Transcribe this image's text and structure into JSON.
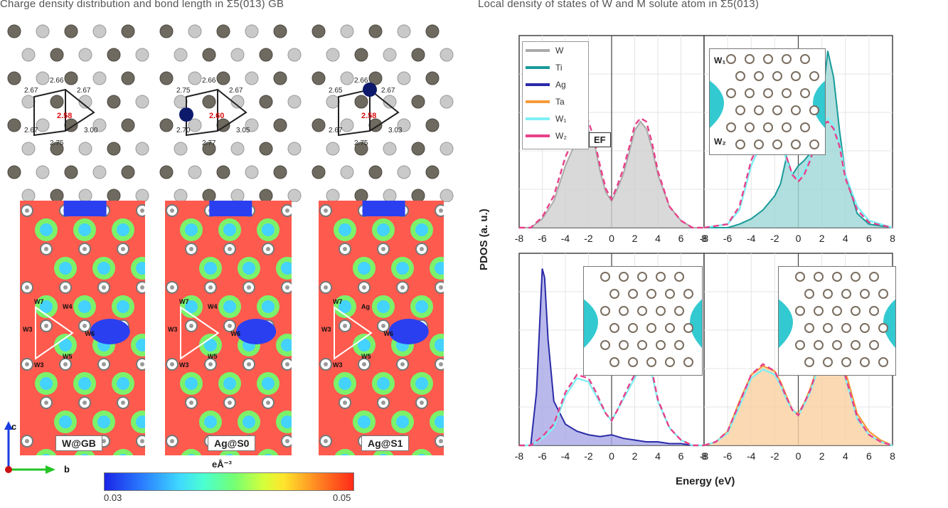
{
  "header": {
    "left_title": "Charge density distribution and bond length in Σ5(013) GB",
    "right_title": "Local density of states of W and M solute atom in Σ5(013)"
  },
  "left_panel": {
    "structures": [
      {
        "bonds": [
          "2.67",
          "2.66",
          "2.67",
          "3.00",
          "2.75",
          "2.67"
        ],
        "center_bond": "2.58"
      },
      {
        "bonds": [
          "2.75",
          "2.66",
          "2.67",
          "3.05",
          "2.77",
          "2.70"
        ],
        "center_bond": "2.60"
      },
      {
        "bonds": [
          "2.65",
          "2.66",
          "2.67",
          "3.03",
          "2.75",
          "2.67"
        ],
        "center_bond": "2.58"
      }
    ],
    "maps": [
      {
        "label": "W@GB",
        "atom_tags": [
          "W7",
          "W4",
          "W3",
          "W6",
          "W5",
          "W3"
        ]
      },
      {
        "label": "Ag@S0",
        "atom_tags": [
          "W7",
          "W4",
          "W3",
          "W6",
          "W5",
          "W3"
        ]
      },
      {
        "label": "Ag@S1",
        "atom_tags": [
          "W7",
          "Ag",
          "W3",
          "W6",
          "W5",
          "W3"
        ]
      }
    ],
    "axes": {
      "c": "c",
      "b": "b"
    },
    "colorbar": {
      "unit": "eÅ⁻³",
      "min": "0.03",
      "max": "0.05"
    }
  },
  "pdos_figure": {
    "ylabel": "PDOS (a. u.)",
    "xlabel": "Energy (eV)",
    "xticks": [
      "-8",
      "-6",
      "-4",
      "-2",
      "0",
      "2",
      "4",
      "6",
      "8"
    ],
    "fermi_label": "EF",
    "legend": [
      {
        "name": "W",
        "color": "#aaaaaa"
      },
      {
        "name": "Ti",
        "color": "#1a9a9a"
      },
      {
        "name": "Ag",
        "color": "#2a2aa8"
      },
      {
        "name": "Ta",
        "color": "#f59a3a"
      },
      {
        "name": "W₁",
        "color": "#7ff0f5"
      },
      {
        "name": "W₂",
        "color": "#e8408a"
      }
    ],
    "inset_labels": [
      "W₁",
      "W₂"
    ]
  },
  "chart_data": [
    {
      "type": "area",
      "panel": "top-left",
      "series": [
        {
          "name": "W",
          "x": [
            -8,
            -7,
            -6,
            -5,
            -4,
            -3,
            -2,
            -1.5,
            -1,
            -0.5,
            0,
            0.5,
            1,
            1.5,
            2,
            2.5,
            3,
            3.5,
            4,
            5,
            6,
            7,
            8
          ],
          "values": [
            0,
            0,
            0.05,
            0.15,
            0.35,
            0.5,
            0.55,
            0.48,
            0.32,
            0.2,
            0.15,
            0.22,
            0.3,
            0.42,
            0.55,
            0.6,
            0.56,
            0.45,
            0.3,
            0.12,
            0.04,
            0,
            0
          ]
        },
        {
          "name": "W₂",
          "x": [
            -8,
            -7,
            -6,
            -5,
            -4,
            -3,
            -2,
            -1.5,
            -1,
            -0.5,
            0,
            0.5,
            1,
            1.5,
            2,
            2.5,
            3,
            3.5,
            4,
            5,
            6,
            7,
            8
          ],
          "values": [
            0,
            0,
            0.06,
            0.18,
            0.4,
            0.54,
            0.6,
            0.5,
            0.35,
            0.22,
            0.16,
            0.24,
            0.33,
            0.45,
            0.58,
            0.62,
            0.6,
            0.48,
            0.32,
            0.12,
            0.04,
            0,
            0
          ]
        }
      ],
      "xlim": [
        -8,
        8
      ]
    },
    {
      "type": "area",
      "panel": "top-right",
      "series": [
        {
          "name": "Ti",
          "x": [
            -8,
            -6,
            -5,
            -4,
            -3,
            -2,
            -1.5,
            -1,
            -0.5,
            0,
            0.5,
            1,
            1.5,
            2,
            2.5,
            3,
            3.5,
            4,
            5,
            6,
            8
          ],
          "values": [
            0,
            0,
            0.02,
            0.05,
            0.1,
            0.18,
            0.25,
            0.4,
            0.3,
            0.35,
            0.38,
            0.42,
            0.5,
            0.7,
            1.0,
            0.85,
            0.55,
            0.3,
            0.08,
            0.02,
            0
          ]
        },
        {
          "name": "W₁",
          "x": [
            -8,
            -6,
            -5,
            -4,
            -3,
            -2,
            -1.5,
            -1,
            -0.5,
            0,
            0.5,
            1,
            1.5,
            2,
            2.5,
            3,
            3.5,
            4,
            5,
            6,
            8
          ],
          "values": [
            0,
            0.02,
            0.1,
            0.35,
            0.5,
            0.58,
            0.5,
            0.38,
            0.3,
            0.28,
            0.32,
            0.4,
            0.5,
            0.6,
            0.62,
            0.58,
            0.48,
            0.3,
            0.12,
            0.04,
            0
          ]
        },
        {
          "name": "W₂",
          "x": [
            -8,
            -6,
            -5,
            -4,
            -3,
            -2,
            -1.5,
            -1,
            -0.5,
            0,
            0.5,
            1,
            1.5,
            2,
            2.5,
            3,
            3.5,
            4,
            5,
            6,
            8
          ],
          "values": [
            0,
            0.02,
            0.12,
            0.38,
            0.52,
            0.6,
            0.52,
            0.4,
            0.3,
            0.26,
            0.3,
            0.38,
            0.48,
            0.58,
            0.6,
            0.56,
            0.46,
            0.28,
            0.1,
            0.03,
            0
          ]
        }
      ],
      "xlim": [
        -8,
        8
      ]
    },
    {
      "type": "area",
      "panel": "bottom-left",
      "series": [
        {
          "name": "Ag",
          "x": [
            -8,
            -7,
            -6.5,
            -6,
            -5.8,
            -5.5,
            -5,
            -4,
            -3,
            -2,
            -1,
            0,
            1,
            2,
            3,
            4,
            5,
            6,
            7,
            8
          ],
          "values": [
            0,
            0,
            0.3,
            1.0,
            0.95,
            0.6,
            0.25,
            0.12,
            0.08,
            0.06,
            0.05,
            0.06,
            0.04,
            0.03,
            0.02,
            0.02,
            0.01,
            0.01,
            0,
            0
          ]
        },
        {
          "name": "W₁",
          "x": [
            -8,
            -7,
            -6,
            -5,
            -4,
            -3,
            -2,
            -1.5,
            -1,
            -0.5,
            0,
            0.5,
            1,
            1.5,
            2,
            2.5,
            3,
            3.5,
            4,
            5,
            6,
            7,
            8
          ],
          "values": [
            0,
            0,
            0.04,
            0.1,
            0.28,
            0.38,
            0.36,
            0.3,
            0.24,
            0.18,
            0.14,
            0.2,
            0.26,
            0.32,
            0.38,
            0.45,
            0.5,
            0.4,
            0.25,
            0.1,
            0.03,
            0,
            0
          ]
        },
        {
          "name": "W₂",
          "x": [
            -8,
            -7,
            -6,
            -5,
            -4,
            -3,
            -2,
            -1.5,
            -1,
            -0.5,
            0,
            0.5,
            1,
            1.5,
            2,
            2.5,
            3,
            3.5,
            4,
            5,
            6,
            7,
            8
          ],
          "values": [
            0,
            0,
            0.05,
            0.12,
            0.3,
            0.4,
            0.38,
            0.32,
            0.25,
            0.18,
            0.14,
            0.2,
            0.27,
            0.34,
            0.4,
            0.46,
            0.52,
            0.42,
            0.26,
            0.1,
            0.03,
            0,
            0
          ]
        }
      ],
      "xlim": [
        -8,
        8
      ]
    },
    {
      "type": "area",
      "panel": "bottom-right",
      "series": [
        {
          "name": "Ta",
          "x": [
            -8,
            -7,
            -6,
            -5,
            -4,
            -3,
            -2,
            -1.5,
            -1,
            -0.5,
            0,
            0.5,
            1,
            1.5,
            2,
            2.5,
            3,
            3.5,
            4,
            5,
            6,
            7,
            8
          ],
          "values": [
            0,
            0.02,
            0.08,
            0.25,
            0.4,
            0.45,
            0.42,
            0.36,
            0.28,
            0.2,
            0.18,
            0.24,
            0.32,
            0.42,
            0.55,
            0.66,
            0.7,
            0.6,
            0.42,
            0.18,
            0.08,
            0.03,
            0
          ]
        },
        {
          "name": "W₁",
          "x": [
            -8,
            -7,
            -6,
            -5,
            -4,
            -3,
            -2,
            -1.5,
            -1,
            -0.5,
            0,
            0.5,
            1,
            1.5,
            2,
            2.5,
            3,
            3.5,
            4,
            5,
            6,
            7,
            8
          ],
          "values": [
            0,
            0.02,
            0.07,
            0.22,
            0.38,
            0.43,
            0.4,
            0.34,
            0.26,
            0.2,
            0.17,
            0.23,
            0.3,
            0.4,
            0.52,
            0.62,
            0.66,
            0.56,
            0.38,
            0.15,
            0.06,
            0.02,
            0
          ]
        },
        {
          "name": "W₂",
          "x": [
            -8,
            -7,
            -6,
            -5,
            -4,
            -3,
            -2,
            -1.5,
            -1,
            -0.5,
            0,
            0.5,
            1,
            1.5,
            2,
            2.5,
            3,
            3.5,
            4,
            5,
            6,
            7,
            8
          ],
          "values": [
            0,
            0.02,
            0.08,
            0.24,
            0.4,
            0.46,
            0.42,
            0.35,
            0.27,
            0.2,
            0.17,
            0.24,
            0.31,
            0.41,
            0.53,
            0.63,
            0.67,
            0.57,
            0.39,
            0.16,
            0.06,
            0.02,
            0
          ]
        }
      ],
      "xlim": [
        -8,
        8
      ]
    }
  ]
}
